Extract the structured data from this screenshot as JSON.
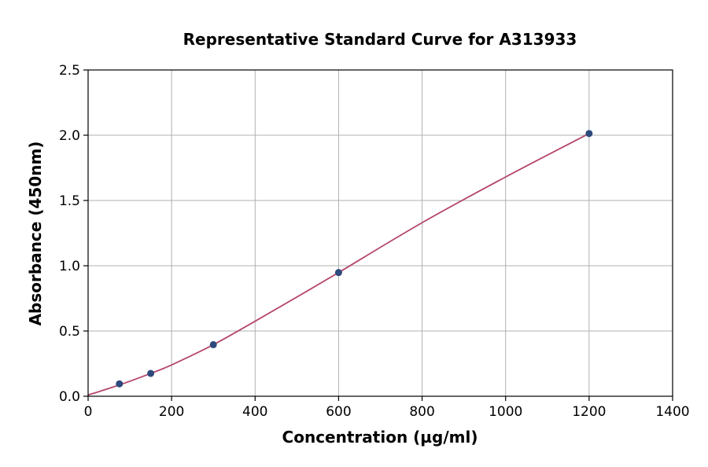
{
  "chart_data": {
    "type": "scatter",
    "title": "Representative Standard Curve for A313933",
    "xlabel": "Concentration (µg/ml)",
    "ylabel": "Absorbance (450nm)",
    "xlim": [
      0,
      1400
    ],
    "ylim": [
      0,
      2.5
    ],
    "xticks": [
      0,
      200,
      400,
      600,
      800,
      1000,
      1200,
      1400
    ],
    "yticks": [
      0.0,
      0.5,
      1.0,
      1.5,
      2.0,
      2.5
    ],
    "xtick_labels": [
      "0",
      "200",
      "400",
      "600",
      "800",
      "1000",
      "1200",
      "1400"
    ],
    "ytick_labels": [
      "0.0",
      "0.5",
      "1.0",
      "1.5",
      "2.0",
      "2.5"
    ],
    "grid": true,
    "series": [
      {
        "x": [
          75,
          150,
          300,
          600,
          1200
        ],
        "y": [
          0.095,
          0.175,
          0.395,
          0.948,
          2.013
        ]
      }
    ],
    "fit_curve": {
      "x": [
        0,
        50,
        100,
        150,
        200,
        300,
        400,
        500,
        600,
        800,
        1000,
        1200
      ],
      "y": [
        0.01,
        0.06,
        0.115,
        0.175,
        0.24,
        0.395,
        0.575,
        0.76,
        0.948,
        1.33,
        1.68,
        2.013
      ]
    },
    "colors": {
      "point": "#2e4a7d",
      "curve": "#b5476b"
    }
  }
}
